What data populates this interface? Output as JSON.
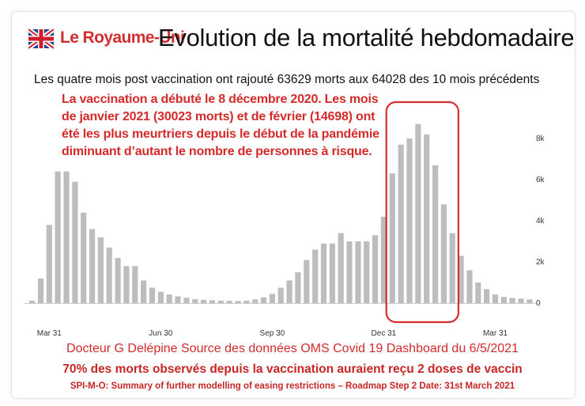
{
  "header": {
    "flag_icon": "uk-flag-icon",
    "country": "Le Royaume-Uni",
    "title": "Evolution de la mortalité hebdomadaire",
    "subtitle": "Les quatre mois post vaccination ont rajouté  63629 morts aux  64028 des 10 mois précédents"
  },
  "annotation": "La vaccination a débuté le 8 décembre 2020. Les  mois de janvier 2021 (30023 morts) et de février (14698) ont été les plus meurtriers depuis le début de la pandémie diminuant d’autant le nombre de personnes à risque.",
  "footer": {
    "source": "Docteur G Delépine  Source des données OMS Covid 19 Dashboard du 6/5/2021",
    "note": "70% des morts observés depuis la vaccination auraient  reçu 2 doses de vaccin",
    "reference": "SPI-M-O: Summary of further modelling of easing restrictions – Roadmap Step 2 Date: 31st March 2021"
  },
  "colors": {
    "bars": "#bdbdbd",
    "highlight": "#d32f2f",
    "text_red": "#d42a2a"
  },
  "chart_data": {
    "type": "bar",
    "title": "",
    "xlabel": "",
    "ylabel": "",
    "ylim": [
      0,
      9000
    ],
    "y_ticks": [
      "0",
      "2k",
      "4k",
      "6k",
      "8k"
    ],
    "y_tick_values": [
      0,
      2000,
      4000,
      6000,
      8000
    ],
    "y_axis_position": "right",
    "grid": false,
    "x_tick_labels": [
      "Mar 31",
      "Jun 30",
      "Sep 30",
      "Dec 31",
      "Mar 31"
    ],
    "x_tick_positions": [
      2,
      15,
      28,
      41,
      54
    ],
    "values": [
      120,
      1200,
      3800,
      6400,
      6400,
      5900,
      4400,
      3600,
      3200,
      2700,
      2200,
      1800,
      1800,
      1100,
      750,
      550,
      420,
      330,
      260,
      190,
      160,
      140,
      120,
      110,
      100,
      120,
      180,
      280,
      450,
      750,
      1100,
      1500,
      2100,
      2600,
      2900,
      2900,
      3400,
      3000,
      3000,
      3000,
      3300,
      4200,
      6300,
      7700,
      8000,
      8700,
      8200,
      6700,
      4800,
      3400,
      2300,
      1600,
      1000,
      680,
      420,
      300,
      250,
      220,
      180
    ],
    "highlight_range": [
      42,
      49
    ]
  }
}
